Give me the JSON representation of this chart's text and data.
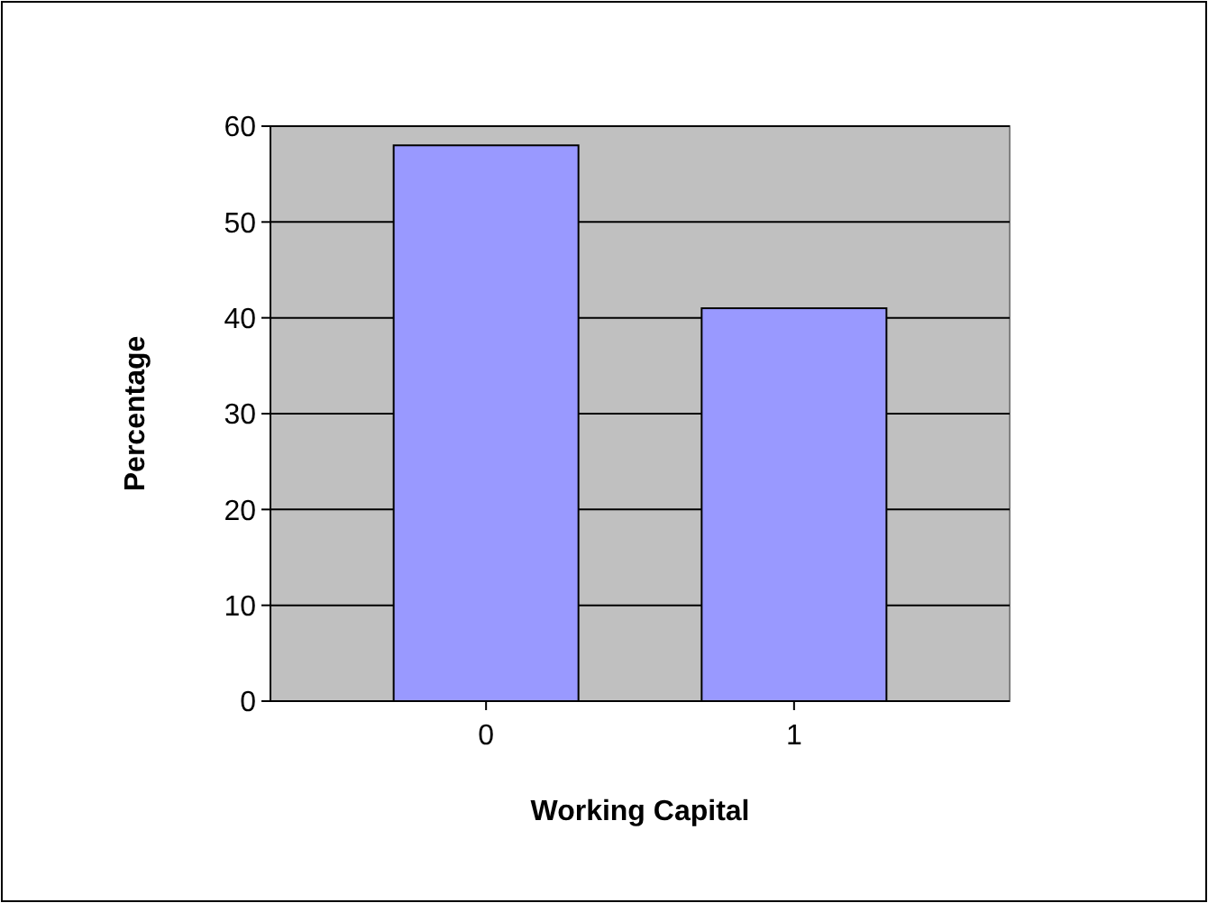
{
  "chart_data": {
    "type": "bar",
    "xlabel": "Working Capital",
    "ylabel": "Percentage",
    "categories": [
      "0",
      "1"
    ],
    "values": [
      58,
      41
    ],
    "color": "#9999ff",
    "ylim": [
      0,
      60
    ],
    "yticks": [
      0,
      10,
      20,
      30,
      40,
      50,
      60
    ],
    "grid": "y"
  }
}
